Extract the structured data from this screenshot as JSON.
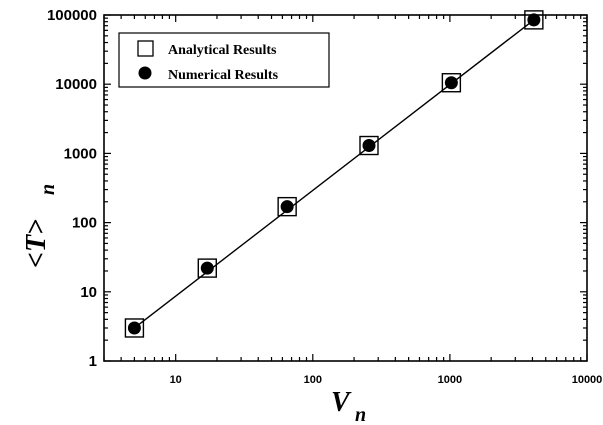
{
  "chart_data": {
    "type": "scatter",
    "x_scale": "log",
    "y_scale": "log",
    "xlim": [
      3,
      10000
    ],
    "ylim": [
      1,
      100000
    ],
    "x_ticks": [
      {
        "value": 10,
        "label": "10"
      },
      {
        "value": 100,
        "label": "100"
      },
      {
        "value": 1000,
        "label": "1000"
      },
      {
        "value": 10000,
        "label": "10000"
      }
    ],
    "y_ticks": [
      {
        "value": 1,
        "label": "1"
      },
      {
        "value": 10,
        "label": "10"
      },
      {
        "value": 100,
        "label": "100"
      },
      {
        "value": 1000,
        "label": "1000"
      },
      {
        "value": 10000,
        "label": "10000"
      },
      {
        "value": 100000,
        "label": "100000"
      }
    ],
    "xlabel": "V",
    "xlabel_sub": "n",
    "ylabel": "<T>",
    "ylabel_sub": "n",
    "grid": false,
    "legend_position": "top-left",
    "series": [
      {
        "name": "Analytical Results",
        "marker": "open-square",
        "x": [
          5,
          17,
          65,
          257,
          1025,
          4097
        ],
        "y": [
          3,
          22,
          170,
          1300,
          10500,
          85000
        ]
      },
      {
        "name": "Numerical Results",
        "marker": "filled-circle",
        "x": [
          5,
          17,
          65,
          257,
          1025,
          4097
        ],
        "y": [
          3,
          22,
          170,
          1300,
          10500,
          85000
        ]
      }
    ],
    "fit_line": {
      "x": [
        5,
        4097
      ],
      "y": [
        3,
        85000
      ]
    }
  }
}
